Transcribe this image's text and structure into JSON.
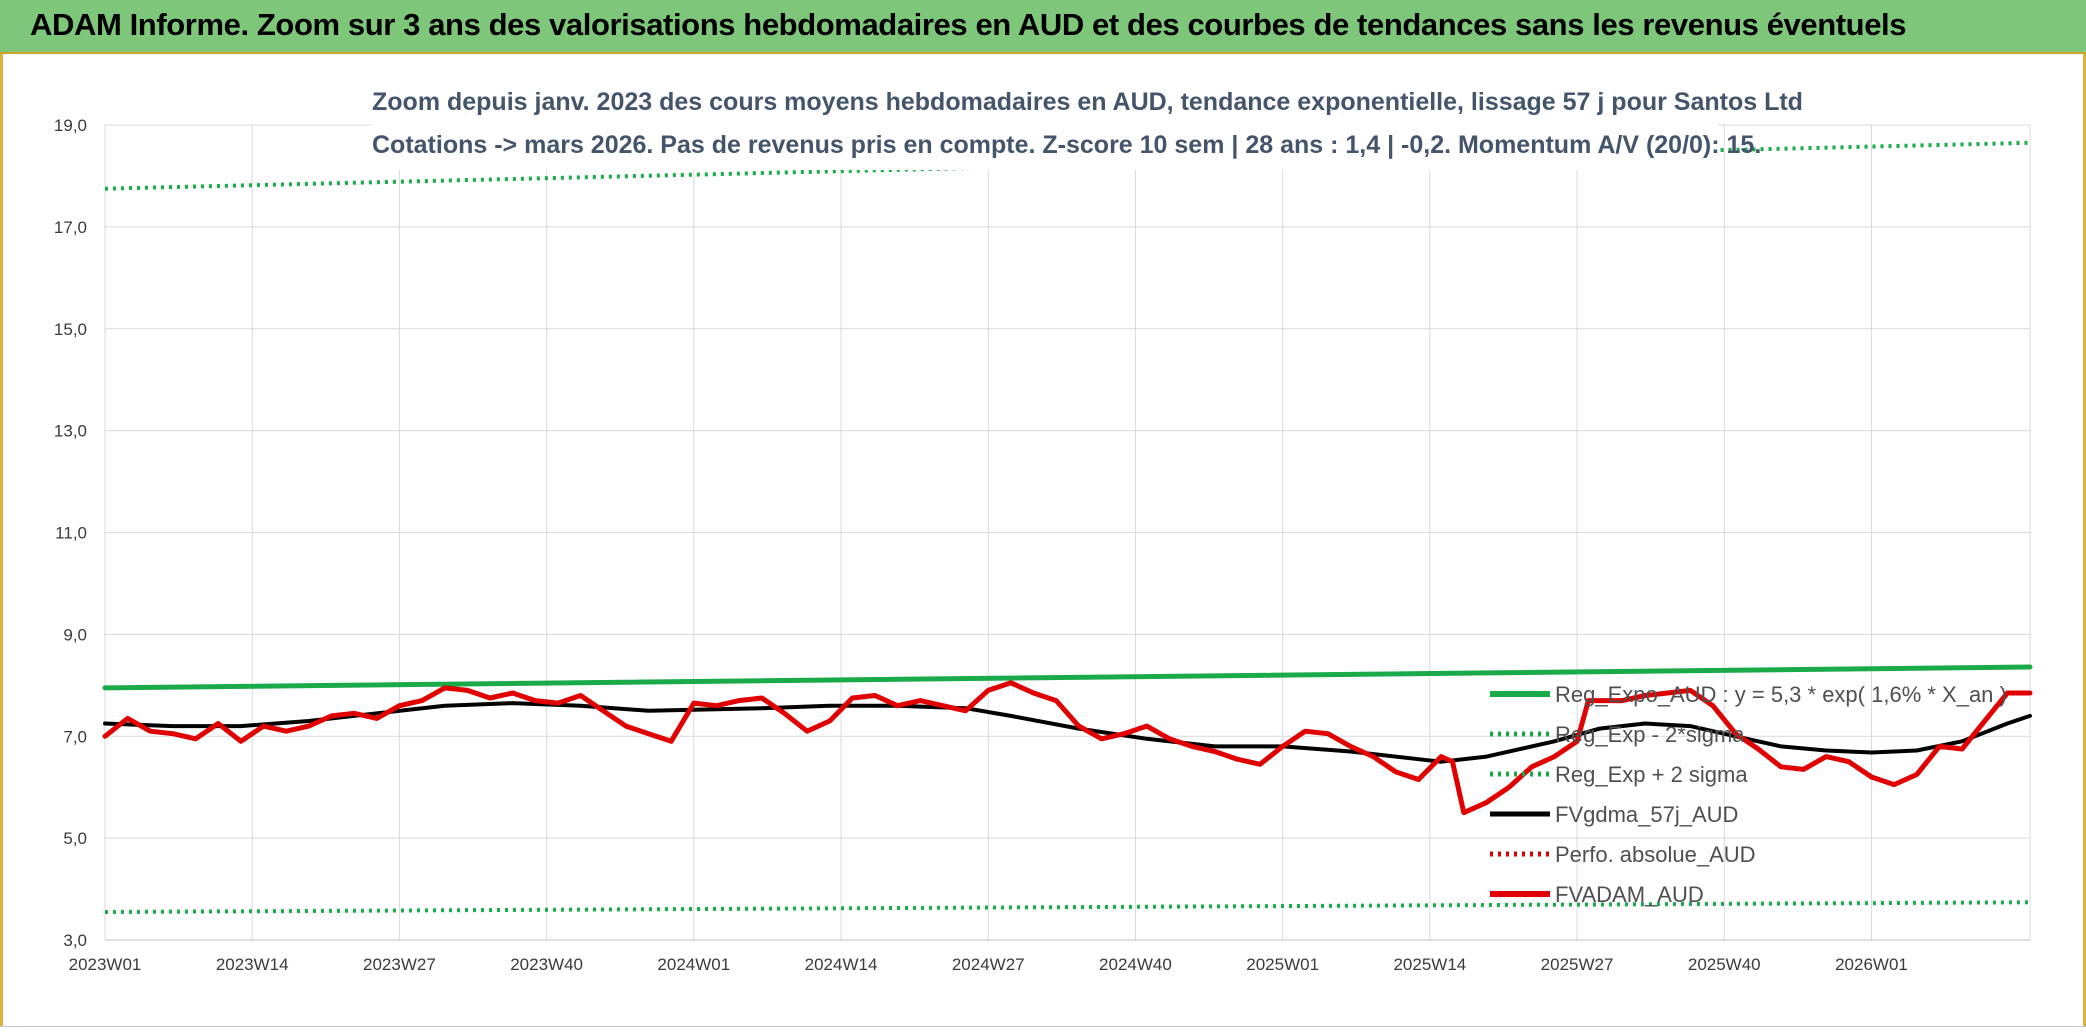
{
  "header": {
    "title": "ADAM Informe. Zoom sur 3 ans des valorisations hebdomadaires en AUD et des courbes de tendances sans les revenus éventuels"
  },
  "chart_data": {
    "type": "line",
    "title": "Zoom depuis janv. 2023 des cours moyens hebdomadaires en AUD, tendance exponentielle, lissage 57 j pour Santos Ltd",
    "subtitle": "Cotations -> mars 2026. Pas de revenus pris en compte. Z-score 10 sem | 28 ans : 1,4 | -0,2. Momentum A/V (20/0): 15.",
    "xlabel": "",
    "ylabel": "",
    "ylim": [
      3.0,
      19.0
    ],
    "yticks": [
      "3,0",
      "5,0",
      "7,0",
      "9,0",
      "11,0",
      "13,0",
      "15,0",
      "17,0",
      "19,0"
    ],
    "xticks": [
      "2023W01",
      "2023W14",
      "2023W27",
      "2023W40",
      "2024W01",
      "2024W14",
      "2024W27",
      "2024W40",
      "2025W01",
      "2025W14",
      "2025W27",
      "2025W40",
      "2026W01"
    ],
    "x_range_weeks": [
      0,
      170
    ],
    "grid": true,
    "legend_position": "bottom-right",
    "series": [
      {
        "name": "Reg_Expo_AUD : y = 5,3 * exp( 1,6% *  X_an )",
        "color": "#1aaa4a",
        "style": "solid-thick",
        "points": [
          [
            0,
            7.95
          ],
          [
            170,
            8.36
          ]
        ]
      },
      {
        "name": "Reg_Exp - 2*sigma",
        "color": "#1aaa4a",
        "style": "dotted",
        "points": [
          [
            0,
            3.55
          ],
          [
            170,
            3.74
          ]
        ]
      },
      {
        "name": "Reg_Exp + 2 sigma",
        "color": "#1aaa4a",
        "style": "dotted",
        "points": [
          [
            0,
            17.75
          ],
          [
            170,
            18.65
          ]
        ]
      },
      {
        "name": "FVgdma_57j_AUD",
        "color": "#000000",
        "style": "solid",
        "points": [
          [
            0,
            7.25
          ],
          [
            6,
            7.2
          ],
          [
            12,
            7.2
          ],
          [
            18,
            7.3
          ],
          [
            24,
            7.45
          ],
          [
            30,
            7.6
          ],
          [
            36,
            7.65
          ],
          [
            42,
            7.6
          ],
          [
            48,
            7.5
          ],
          [
            52,
            7.52
          ],
          [
            58,
            7.55
          ],
          [
            64,
            7.6
          ],
          [
            70,
            7.6
          ],
          [
            76,
            7.55
          ],
          [
            80,
            7.4
          ],
          [
            86,
            7.15
          ],
          [
            92,
            6.95
          ],
          [
            98,
            6.8
          ],
          [
            104,
            6.8
          ],
          [
            110,
            6.7
          ],
          [
            116,
            6.55
          ],
          [
            118,
            6.5
          ],
          [
            122,
            6.6
          ],
          [
            128,
            6.9
          ],
          [
            132,
            7.15
          ],
          [
            136,
            7.25
          ],
          [
            140,
            7.2
          ],
          [
            144,
            7.0
          ],
          [
            148,
            6.8
          ],
          [
            152,
            6.72
          ],
          [
            156,
            6.68
          ],
          [
            160,
            6.72
          ],
          [
            164,
            6.9
          ],
          [
            168,
            7.25
          ],
          [
            170,
            7.4
          ]
        ]
      },
      {
        "name": "Perfo. absolue_AUD",
        "color": "#e00000",
        "style": "dotted",
        "points": []
      },
      {
        "name": "FVADAM_AUD",
        "color": "#e00000",
        "style": "solid-thick",
        "points": [
          [
            0,
            7.0
          ],
          [
            2,
            7.35
          ],
          [
            4,
            7.1
          ],
          [
            6,
            7.05
          ],
          [
            8,
            6.95
          ],
          [
            10,
            7.25
          ],
          [
            12,
            6.9
          ],
          [
            14,
            7.2
          ],
          [
            16,
            7.1
          ],
          [
            18,
            7.2
          ],
          [
            20,
            7.4
          ],
          [
            22,
            7.45
          ],
          [
            24,
            7.35
          ],
          [
            26,
            7.6
          ],
          [
            28,
            7.7
          ],
          [
            30,
            7.95
          ],
          [
            32,
            7.9
          ],
          [
            34,
            7.75
          ],
          [
            36,
            7.85
          ],
          [
            38,
            7.7
          ],
          [
            40,
            7.65
          ],
          [
            42,
            7.8
          ],
          [
            44,
            7.5
          ],
          [
            46,
            7.2
          ],
          [
            48,
            7.05
          ],
          [
            50,
            6.9
          ],
          [
            52,
            7.65
          ],
          [
            54,
            7.6
          ],
          [
            56,
            7.7
          ],
          [
            58,
            7.75
          ],
          [
            60,
            7.45
          ],
          [
            62,
            7.1
          ],
          [
            64,
            7.3
          ],
          [
            66,
            7.75
          ],
          [
            68,
            7.8
          ],
          [
            70,
            7.6
          ],
          [
            72,
            7.7
          ],
          [
            74,
            7.6
          ],
          [
            76,
            7.5
          ],
          [
            78,
            7.9
          ],
          [
            80,
            8.05
          ],
          [
            82,
            7.85
          ],
          [
            84,
            7.7
          ],
          [
            86,
            7.2
          ],
          [
            88,
            6.95
          ],
          [
            90,
            7.05
          ],
          [
            92,
            7.2
          ],
          [
            94,
            6.95
          ],
          [
            96,
            6.8
          ],
          [
            98,
            6.7
          ],
          [
            100,
            6.55
          ],
          [
            102,
            6.45
          ],
          [
            104,
            6.8
          ],
          [
            106,
            7.1
          ],
          [
            108,
            7.05
          ],
          [
            110,
            6.8
          ],
          [
            112,
            6.6
          ],
          [
            114,
            6.3
          ],
          [
            116,
            6.15
          ],
          [
            118,
            6.6
          ],
          [
            119,
            6.5
          ],
          [
            120,
            5.5
          ],
          [
            122,
            5.7
          ],
          [
            124,
            6.0
          ],
          [
            126,
            6.4
          ],
          [
            128,
            6.6
          ],
          [
            130,
            6.9
          ],
          [
            131,
            7.7
          ],
          [
            134,
            7.7
          ],
          [
            136,
            7.8
          ],
          [
            138,
            7.85
          ],
          [
            140,
            7.9
          ],
          [
            142,
            7.6
          ],
          [
            144,
            7.05
          ],
          [
            146,
            6.75
          ],
          [
            148,
            6.4
          ],
          [
            150,
            6.35
          ],
          [
            152,
            6.6
          ],
          [
            154,
            6.5
          ],
          [
            156,
            6.2
          ],
          [
            158,
            6.05
          ],
          [
            160,
            6.25
          ],
          [
            162,
            6.8
          ],
          [
            164,
            6.75
          ],
          [
            166,
            7.3
          ],
          [
            168,
            7.85
          ],
          [
            170,
            7.85
          ]
        ]
      }
    ]
  }
}
